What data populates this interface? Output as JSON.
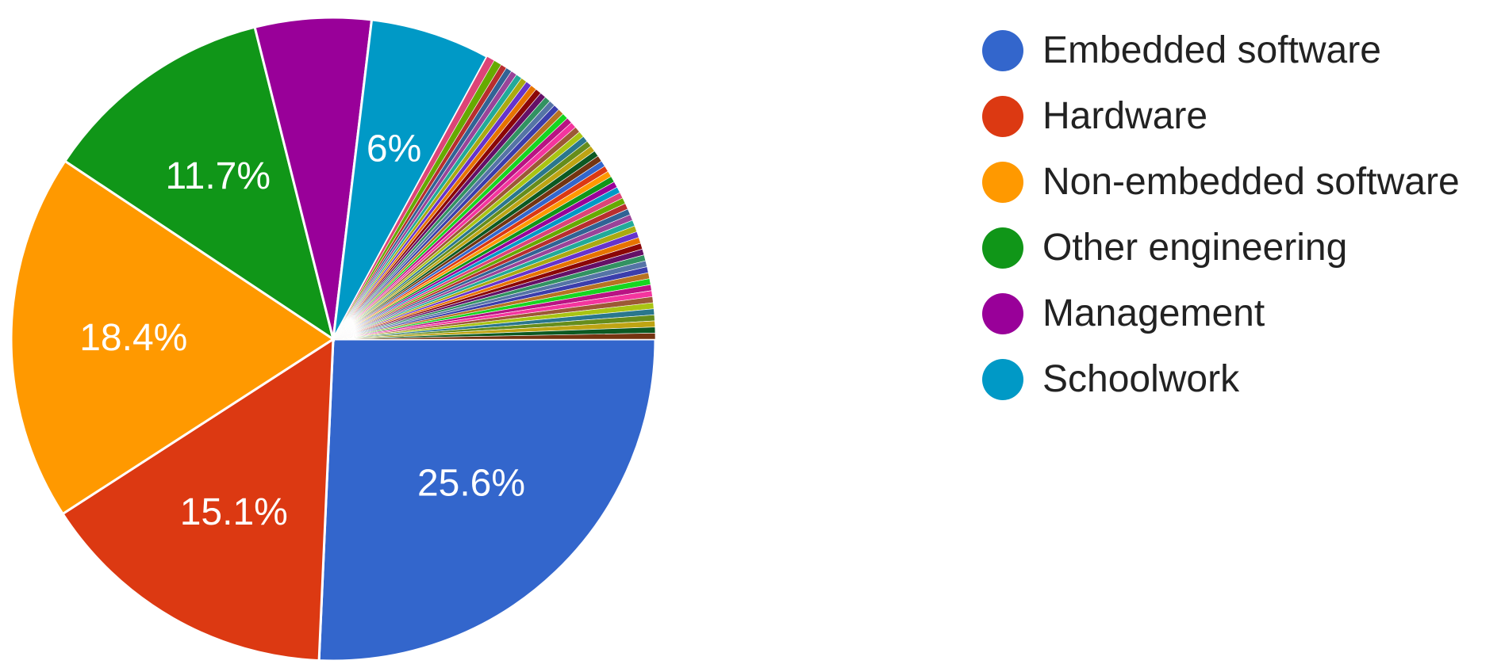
{
  "chart_data": {
    "type": "pie",
    "slices": [
      {
        "name": "Embedded software",
        "value": 25.6,
        "label": "25.6%",
        "color": "#3366cc",
        "legend": true
      },
      {
        "name": "Hardware",
        "value": 15.1,
        "label": "15.1%",
        "color": "#dc3912",
        "legend": true
      },
      {
        "name": "Non-embedded software",
        "value": 18.4,
        "label": "18.4%",
        "color": "#ff9900",
        "legend": true
      },
      {
        "name": "Other engineering",
        "value": 11.7,
        "label": "11.7%",
        "color": "#109618",
        "legend": true
      },
      {
        "name": "Management",
        "value": 5.8,
        "label": "",
        "color": "#990099",
        "legend": true
      },
      {
        "name": "Schoolwork",
        "value": 6.0,
        "label": "6%",
        "color": "#0099c6",
        "legend": true
      },
      {
        "name": "",
        "value": 0.4,
        "label": "",
        "color": "#dd4477",
        "legend": false
      },
      {
        "name": "",
        "value": 0.4,
        "label": "",
        "color": "#66aa00",
        "legend": false
      },
      {
        "name": "",
        "value": 0.3,
        "label": "",
        "color": "#b82e2e",
        "legend": false
      },
      {
        "name": "",
        "value": 0.3,
        "label": "",
        "color": "#316395",
        "legend": false
      },
      {
        "name": "",
        "value": 0.3,
        "label": "",
        "color": "#994499",
        "legend": false
      },
      {
        "name": "",
        "value": 0.3,
        "label": "",
        "color": "#22aa99",
        "legend": false
      },
      {
        "name": "",
        "value": 0.3,
        "label": "",
        "color": "#aaaa11",
        "legend": false
      },
      {
        "name": "",
        "value": 0.3,
        "label": "",
        "color": "#6633cc",
        "legend": false
      },
      {
        "name": "",
        "value": 0.3,
        "label": "",
        "color": "#e67300",
        "legend": false
      },
      {
        "name": "",
        "value": 0.3,
        "label": "",
        "color": "#8b0707",
        "legend": false
      },
      {
        "name": "",
        "value": 0.3,
        "label": "",
        "color": "#651067",
        "legend": false
      },
      {
        "name": "",
        "value": 0.3,
        "label": "",
        "color": "#329262",
        "legend": false
      },
      {
        "name": "",
        "value": 0.3,
        "label": "",
        "color": "#5574a6",
        "legend": false
      },
      {
        "name": "",
        "value": 0.3,
        "label": "",
        "color": "#3b3eac",
        "legend": false
      },
      {
        "name": "",
        "value": 0.3,
        "label": "",
        "color": "#b77322",
        "legend": false
      },
      {
        "name": "",
        "value": 0.3,
        "label": "",
        "color": "#16d620",
        "legend": false
      },
      {
        "name": "",
        "value": 0.3,
        "label": "",
        "color": "#b91383",
        "legend": false
      },
      {
        "name": "",
        "value": 0.3,
        "label": "",
        "color": "#f4359e",
        "legend": false
      },
      {
        "name": "",
        "value": 0.3,
        "label": "",
        "color": "#9c5935",
        "legend": false
      },
      {
        "name": "",
        "value": 0.3,
        "label": "",
        "color": "#a9c413",
        "legend": false
      },
      {
        "name": "",
        "value": 0.3,
        "label": "",
        "color": "#2a778d",
        "legend": false
      },
      {
        "name": "",
        "value": 0.3,
        "label": "",
        "color": "#668d1c",
        "legend": false
      },
      {
        "name": "",
        "value": 0.3,
        "label": "",
        "color": "#bea413",
        "legend": false
      },
      {
        "name": "",
        "value": 0.3,
        "label": "",
        "color": "#0c5922",
        "legend": false
      },
      {
        "name": "",
        "value": 0.3,
        "label": "",
        "color": "#743411",
        "legend": false
      },
      {
        "name": "",
        "value": 0.3,
        "label": "",
        "color": "#3366cc",
        "legend": false
      },
      {
        "name": "",
        "value": 0.3,
        "label": "",
        "color": "#dc3912",
        "legend": false
      },
      {
        "name": "",
        "value": 0.3,
        "label": "",
        "color": "#ff9900",
        "legend": false
      },
      {
        "name": "",
        "value": 0.3,
        "label": "",
        "color": "#109618",
        "legend": false
      },
      {
        "name": "",
        "value": 0.3,
        "label": "",
        "color": "#990099",
        "legend": false
      },
      {
        "name": "",
        "value": 0.3,
        "label": "",
        "color": "#0099c6",
        "legend": false
      },
      {
        "name": "",
        "value": 0.3,
        "label": "",
        "color": "#dd4477",
        "legend": false
      },
      {
        "name": "",
        "value": 0.3,
        "label": "",
        "color": "#66aa00",
        "legend": false
      },
      {
        "name": "",
        "value": 0.3,
        "label": "",
        "color": "#b82e2e",
        "legend": false
      },
      {
        "name": "",
        "value": 0.3,
        "label": "",
        "color": "#316395",
        "legend": false
      },
      {
        "name": "",
        "value": 0.3,
        "label": "",
        "color": "#994499",
        "legend": false
      },
      {
        "name": "",
        "value": 0.3,
        "label": "",
        "color": "#22aa99",
        "legend": false
      },
      {
        "name": "",
        "value": 0.3,
        "label": "",
        "color": "#aaaa11",
        "legend": false
      },
      {
        "name": "",
        "value": 0.3,
        "label": "",
        "color": "#6633cc",
        "legend": false
      },
      {
        "name": "",
        "value": 0.3,
        "label": "",
        "color": "#e67300",
        "legend": false
      },
      {
        "name": "",
        "value": 0.3,
        "label": "",
        "color": "#8b0707",
        "legend": false
      },
      {
        "name": "",
        "value": 0.3,
        "label": "",
        "color": "#651067",
        "legend": false
      },
      {
        "name": "",
        "value": 0.3,
        "label": "",
        "color": "#329262",
        "legend": false
      },
      {
        "name": "",
        "value": 0.3,
        "label": "",
        "color": "#5574a6",
        "legend": false
      },
      {
        "name": "",
        "value": 0.3,
        "label": "",
        "color": "#3b3eac",
        "legend": false
      },
      {
        "name": "",
        "value": 0.3,
        "label": "",
        "color": "#b77322",
        "legend": false
      },
      {
        "name": "",
        "value": 0.3,
        "label": "",
        "color": "#16d620",
        "legend": false
      },
      {
        "name": "",
        "value": 0.3,
        "label": "",
        "color": "#b91383",
        "legend": false
      },
      {
        "name": "",
        "value": 0.3,
        "label": "",
        "color": "#f4359e",
        "legend": false
      },
      {
        "name": "",
        "value": 0.3,
        "label": "",
        "color": "#9c5935",
        "legend": false
      },
      {
        "name": "",
        "value": 0.3,
        "label": "",
        "color": "#a9c413",
        "legend": false
      },
      {
        "name": "",
        "value": 0.3,
        "label": "",
        "color": "#2a778d",
        "legend": false
      },
      {
        "name": "",
        "value": 0.3,
        "label": "",
        "color": "#668d1c",
        "legend": false
      },
      {
        "name": "",
        "value": 0.3,
        "label": "",
        "color": "#bea413",
        "legend": false
      },
      {
        "name": "",
        "value": 0.3,
        "label": "",
        "color": "#0c5922",
        "legend": false
      },
      {
        "name": "",
        "value": 0.3,
        "label": "",
        "color": "#743411",
        "legend": false
      }
    ],
    "legend_position": "right"
  }
}
